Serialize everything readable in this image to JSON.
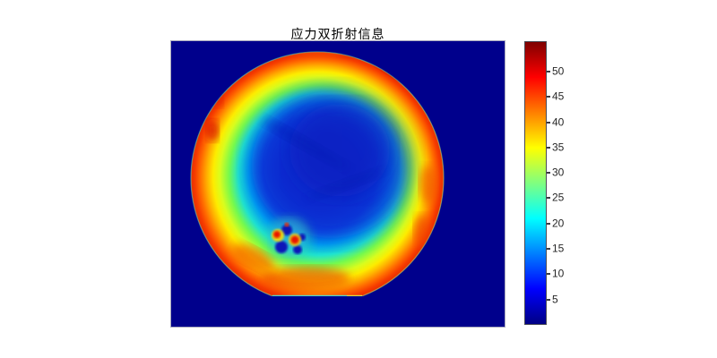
{
  "figure": {
    "canvas_bg": "#ffffff"
  },
  "chart_data": {
    "type": "heatmap",
    "title": "应力双折射信息",
    "title_translation": "Stress birefringence information",
    "colormap": "jet",
    "image_background_color": "#00008c",
    "colorbar": {
      "orientation": "vertical",
      "side": "right",
      "ticks": [
        5,
        10,
        15,
        20,
        25,
        30,
        35,
        40,
        45,
        50
      ],
      "range_estimate": [
        0,
        56
      ],
      "stops": [
        {
          "pos": 0.0,
          "color": "#7f0000"
        },
        {
          "pos": 0.125,
          "color": "#ff0000"
        },
        {
          "pos": 0.375,
          "color": "#ffff00"
        },
        {
          "pos": 0.625,
          "color": "#00ffff"
        },
        {
          "pos": 0.875,
          "color": "#0000ff"
        },
        {
          "pos": 1.0,
          "color": "#000084"
        }
      ]
    },
    "subject": {
      "shape": "circular wafer with flat cut at bottom edge",
      "regions": [
        {
          "name": "background",
          "approx_value": 0,
          "color_hex": "#00008c"
        },
        {
          "name": "outer-rim-ring",
          "approx_values": "40-52",
          "color": "red-orange"
        },
        {
          "name": "yellow-ring",
          "approx_values": "30-35",
          "color": "yellow"
        },
        {
          "name": "green-ring",
          "approx_values": "25-30",
          "color": "green"
        },
        {
          "name": "cyan-ring",
          "approx_values": "15-25",
          "color": "cyan"
        },
        {
          "name": "center-blob",
          "approx_values": "3-12",
          "color": "dark blue, irregular mottled"
        },
        {
          "name": "defect-cluster",
          "position": "lower-left of wafer center",
          "approx_values": "2-50",
          "color": "dark blue speckles with red/yellow hot spots"
        },
        {
          "name": "rim-hot-streak",
          "position": "upper-right rim",
          "approx_values": "50-54",
          "color": "dark red"
        }
      ]
    }
  }
}
